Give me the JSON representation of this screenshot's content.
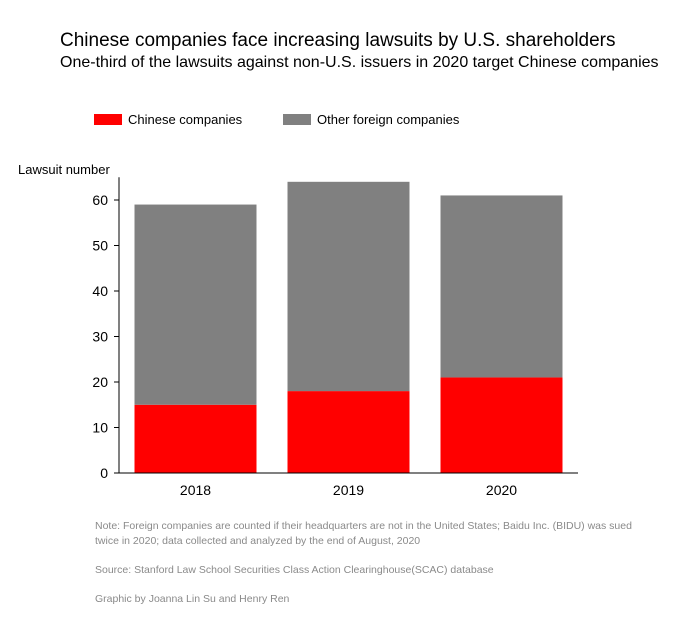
{
  "chart_data": {
    "type": "bar",
    "stacked": true,
    "title": "Chinese companies face increasing lawsuits by U.S. shareholders",
    "subtitle": "One-third of the lawsuits against non-U.S. issuers in 2020 target Chinese companies",
    "ylabel": "Lawsuit number",
    "xlabel": "",
    "ylim": [
      0,
      65
    ],
    "yticks": [
      0,
      10,
      20,
      30,
      40,
      50,
      60
    ],
    "categories": [
      "2018",
      "2019",
      "2020"
    ],
    "series": [
      {
        "name": "Chinese companies",
        "color": "#ff0000",
        "values": [
          15,
          18,
          21
        ]
      },
      {
        "name": "Other foreign companies",
        "color": "#808080",
        "values": [
          44,
          46,
          40
        ]
      }
    ],
    "legend_position": "top-left",
    "grid": false
  },
  "notes": {
    "note": "Note: Foreign companies are counted if their headquarters are not in the United States; Baidu Inc. (BIDU) was sued twice in 2020; data collected and analyzed by the end of August, 2020",
    "source": "Source: Stanford Law School Securities Class Action Clearinghouse(SCAC) database",
    "credit": "Graphic by Joanna Lin Su and Henry Ren"
  }
}
